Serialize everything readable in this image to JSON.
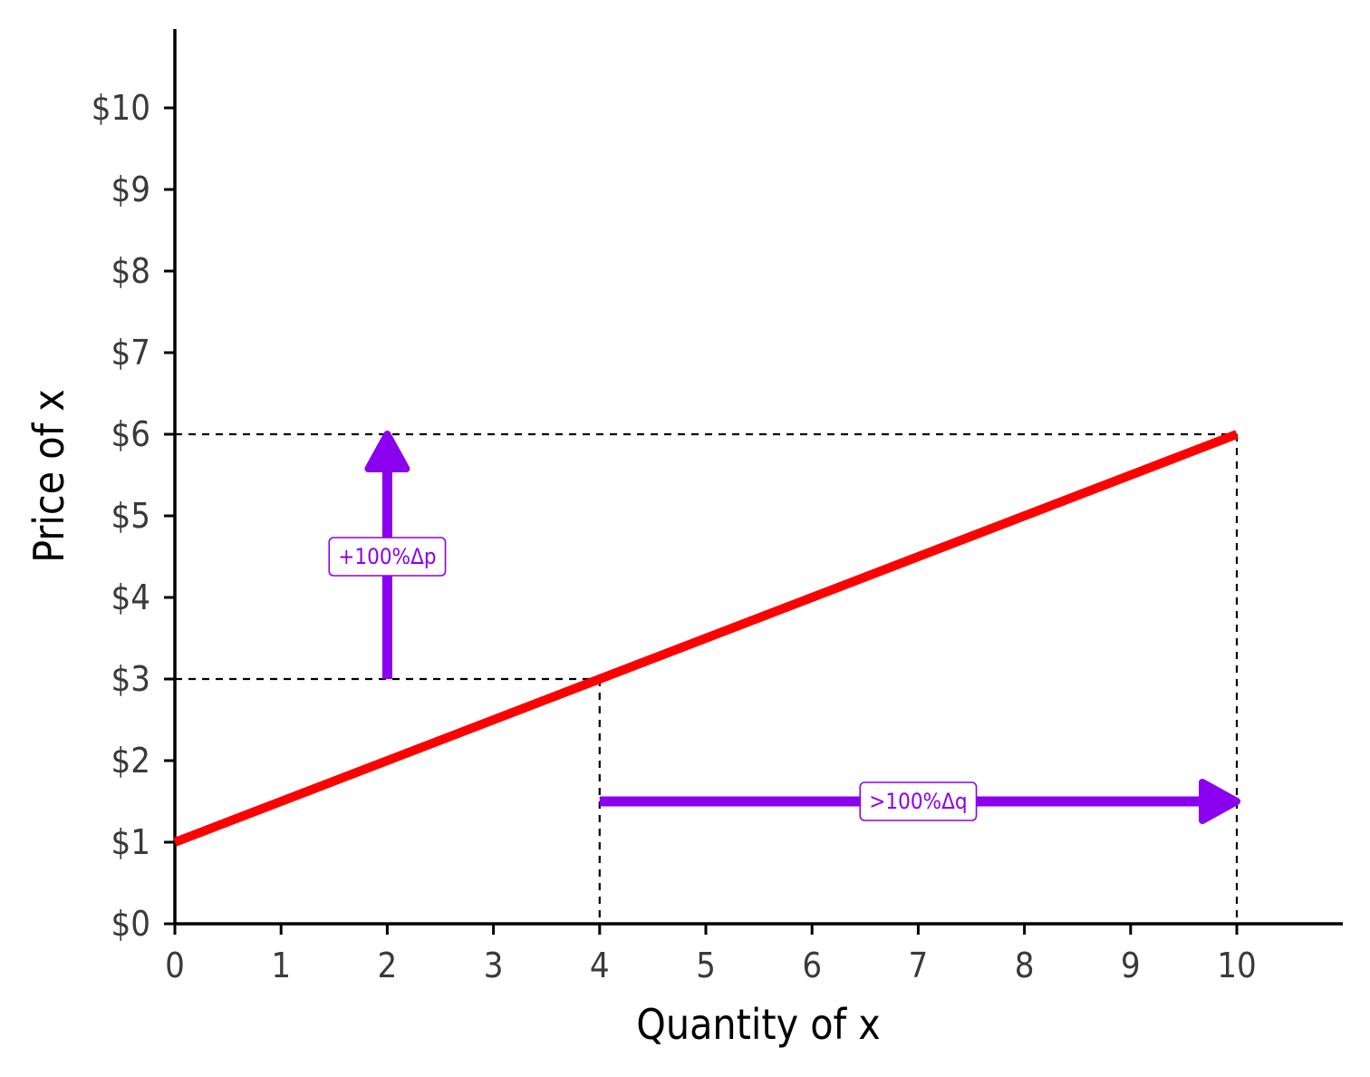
{
  "chart_data": {
    "type": "line",
    "xlabel": "Quantity of x",
    "ylabel": "Price of x",
    "xlim": [
      0,
      11
    ],
    "ylim": [
      0,
      11
    ],
    "x_ticks": [
      {
        "value": 0,
        "label": "0"
      },
      {
        "value": 1,
        "label": "1"
      },
      {
        "value": 2,
        "label": "2"
      },
      {
        "value": 3,
        "label": "3"
      },
      {
        "value": 4,
        "label": "4"
      },
      {
        "value": 5,
        "label": "5"
      },
      {
        "value": 6,
        "label": "6"
      },
      {
        "value": 7,
        "label": "7"
      },
      {
        "value": 8,
        "label": "8"
      },
      {
        "value": 9,
        "label": "9"
      },
      {
        "value": 10,
        "label": "10"
      }
    ],
    "y_ticks": [
      {
        "value": 0,
        "label": "$0"
      },
      {
        "value": 1,
        "label": "$1"
      },
      {
        "value": 2,
        "label": "$2"
      },
      {
        "value": 3,
        "label": "$3"
      },
      {
        "value": 4,
        "label": "$4"
      },
      {
        "value": 5,
        "label": "$5"
      },
      {
        "value": 6,
        "label": "$6"
      },
      {
        "value": 7,
        "label": "$7"
      },
      {
        "value": 8,
        "label": "$8"
      },
      {
        "value": 9,
        "label": "$9"
      },
      {
        "value": 10,
        "label": "$10"
      }
    ],
    "grid": false,
    "series": [
      {
        "color": "#ff0000",
        "x": [
          0,
          10
        ],
        "y": [
          1,
          6
        ]
      }
    ],
    "reference_lines": [
      {
        "from": [
          0,
          3
        ],
        "to": [
          4,
          3
        ]
      },
      {
        "from": [
          4,
          3
        ],
        "to": [
          4,
          0
        ]
      },
      {
        "from": [
          0,
          6
        ],
        "to": [
          10,
          6
        ]
      },
      {
        "from": [
          10,
          6
        ],
        "to": [
          10,
          0
        ]
      }
    ],
    "arrows": [
      {
        "from": [
          2,
          3
        ],
        "to": [
          2,
          6
        ],
        "label": "+100%Δp",
        "label_at": [
          2,
          4.5
        ]
      },
      {
        "from": [
          4,
          1.5
        ],
        "to": [
          10,
          1.5
        ],
        "label": ">100%Δq",
        "label_at": [
          7,
          1.5
        ]
      }
    ],
    "colors": {
      "curve": "#ff0000",
      "arrow": "#8b00ee",
      "axis": "#000000",
      "tick_text": "#3a3a3a"
    }
  }
}
